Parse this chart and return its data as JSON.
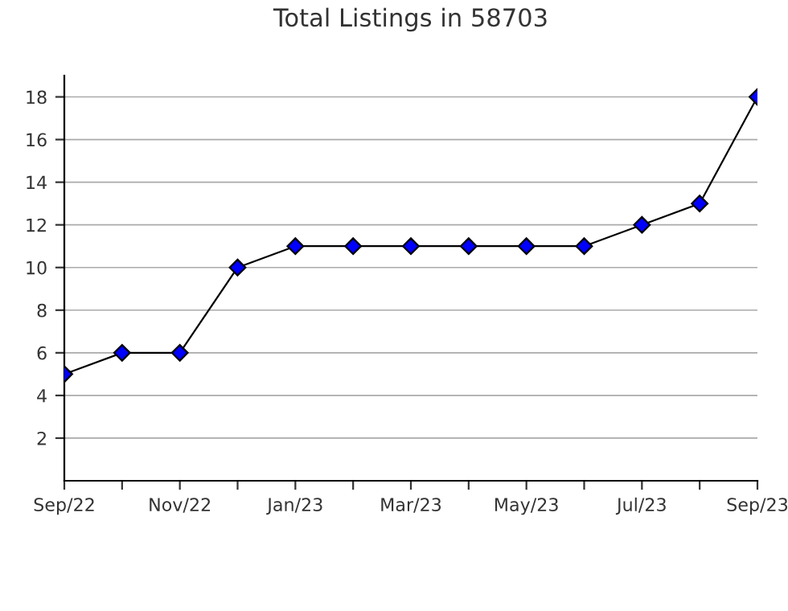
{
  "chart_data": {
    "type": "line",
    "title": "Total Listings in 58703",
    "categories": [
      "Sep/22",
      null,
      "Nov/22",
      null,
      "Jan/23",
      null,
      "Mar/23",
      null,
      "May/23",
      null,
      "Jul/23",
      null,
      "Sep/23"
    ],
    "series": [
      {
        "color": "#0000ff",
        "values": [
          5,
          6,
          6,
          10,
          11,
          11,
          11,
          11,
          11,
          11,
          12,
          13,
          18
        ]
      }
    ],
    "ylim": [
      0,
      19
    ],
    "yticks": [
      2,
      4,
      6,
      8,
      10,
      12,
      14,
      16,
      18
    ],
    "grid": "y",
    "marker": "diamond",
    "line_style": "solid"
  }
}
